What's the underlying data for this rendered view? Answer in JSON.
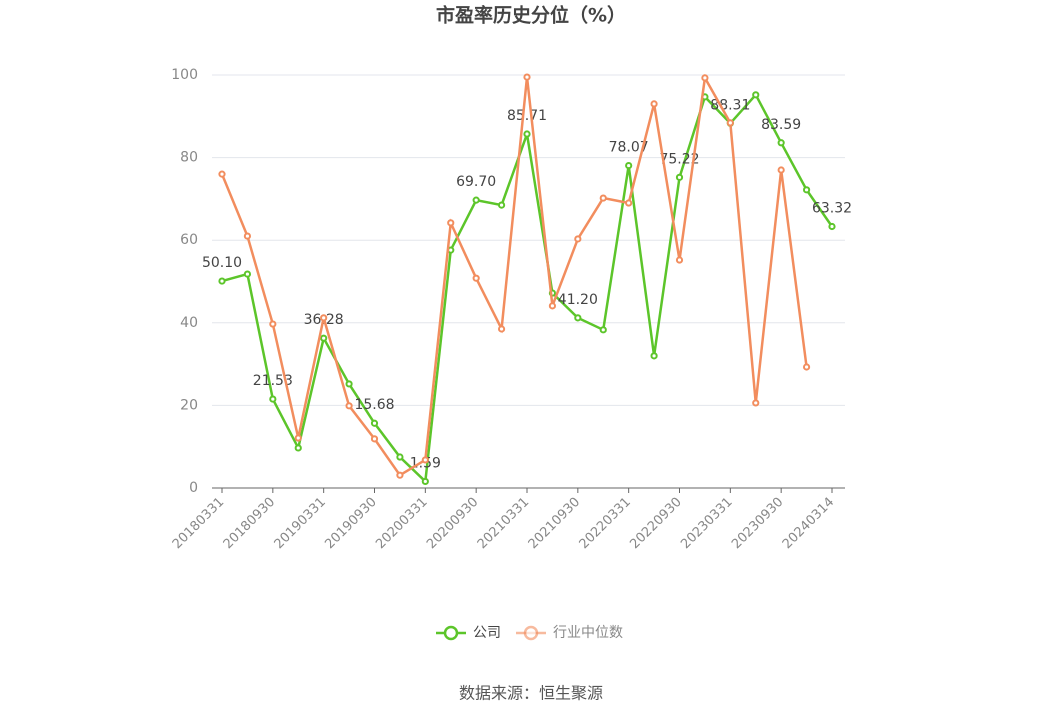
{
  "chart_data": {
    "type": "line",
    "title": "市盈率历史分位（%）",
    "categories": [
      "20180331",
      null,
      "20180930",
      null,
      "20190331",
      null,
      "20190930",
      null,
      "20200331",
      null,
      "20200930",
      null,
      "20210331",
      null,
      "20210930",
      null,
      "20220331",
      null,
      "20220930",
      null,
      "20230331",
      null,
      "20230930",
      null,
      "20240314"
    ],
    "series": [
      {
        "name": "公司",
        "color": "#5cc52a",
        "values": [
          50.1,
          51.8,
          21.53,
          9.7,
          36.28,
          25.2,
          15.68,
          7.5,
          1.59,
          57.6,
          69.7,
          68.5,
          85.71,
          47.2,
          41.2,
          38.3,
          78.07,
          32.0,
          75.22,
          94.7,
          88.31,
          95.2,
          83.59,
          72.2,
          63.32
        ],
        "value_labels": [
          "50.10",
          null,
          "21.53",
          null,
          "36.28",
          null,
          "15.68",
          null,
          "1.59",
          null,
          "69.70",
          null,
          "85.71",
          null,
          "41.20",
          null,
          "78.07",
          null,
          "75.22",
          null,
          "88.31",
          null,
          "83.59",
          null,
          "63.32"
        ]
      },
      {
        "name": "行业中位数",
        "color": "#f28d5e",
        "values": [
          76.0,
          61.0,
          39.7,
          12.1,
          41.2,
          19.9,
          11.9,
          3.1,
          6.8,
          64.2,
          50.8,
          38.5,
          99.5,
          44.1,
          60.3,
          70.2,
          69.0,
          93.0,
          55.2,
          99.3,
          88.4,
          20.6,
          77.0,
          29.3,
          null
        ]
      }
    ],
    "ylim": [
      0,
      100
    ],
    "yticks": [
      0,
      20,
      40,
      60,
      80,
      100
    ],
    "grid": true,
    "source": "数据来源：恒生聚源"
  }
}
